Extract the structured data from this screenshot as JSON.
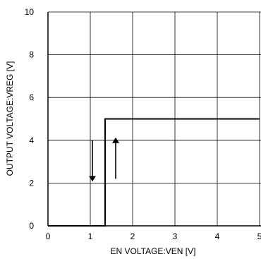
{
  "chart_data": {
    "type": "line",
    "title": "",
    "xlabel": "EN VOLTAGE:VEN [V]",
    "ylabel": "OUTPUT VOLTAGE:VREG [V]",
    "xlim": [
      0,
      5
    ],
    "ylim": [
      0,
      10
    ],
    "xticks": [
      "0",
      "1",
      "2",
      "3",
      "4",
      "5"
    ],
    "yticks": [
      "0",
      "2",
      "4",
      "6",
      "8",
      "10"
    ],
    "grid": true,
    "series": [
      {
        "x": [
          0,
          1.35,
          1.35,
          5
        ],
        "y": [
          0,
          0,
          5,
          5
        ],
        "color": "#000000"
      }
    ],
    "annotations": [
      {
        "type": "arrow-down",
        "x": 1.05,
        "y_from": 4.0,
        "y_to": 2.2
      },
      {
        "type": "arrow-up",
        "x": 1.6,
        "y_from": 2.2,
        "y_to": 4.0
      }
    ]
  }
}
